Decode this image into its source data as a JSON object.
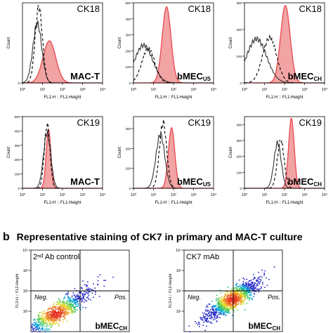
{
  "section_b": {
    "letter": "b",
    "title": "Representative staining of CK7 in primary and MAC-T culture"
  },
  "histogram_axis": {
    "xlabel": "FL1-H :: FL1-Height",
    "ylabel": "Count",
    "x_ticks": [
      "10⁰",
      "10¹",
      "10²",
      "10³",
      "10⁴"
    ]
  },
  "scatter_axis": {
    "ylabel": "FL3-H :: FL2-Height",
    "y_ticks": [
      "10¹",
      "10²",
      "10³",
      "10⁴"
    ],
    "neg_label": "Neg.",
    "pos_label": "Pos."
  },
  "colors": {
    "filled": "#e8474f",
    "filled_fill": "#f2a3a3",
    "isotype_solid": "#333333",
    "isotype_dashed": "#000000"
  },
  "chart_data": [
    {
      "type": "area",
      "id": "ck18-mact",
      "marker": "CK18",
      "sample": "MAC-T",
      "sample_sub": "",
      "x_scale": "log",
      "xlim": [
        1,
        10000
      ],
      "y_ticks": [],
      "ylim": [
        0,
        200
      ],
      "series": [
        {
          "style": "filled",
          "peak_x": 22,
          "peak_y": 105,
          "width": 0.32
        },
        {
          "style": "solid",
          "peak_x": 5.5,
          "peak_y": 148,
          "width": 0.22
        },
        {
          "style": "dashed",
          "peak_x": 6.5,
          "peak_y": 190,
          "width": 0.18
        }
      ]
    },
    {
      "type": "area",
      "id": "ck18-bmecus",
      "marker": "CK18",
      "sample": "bMEC",
      "sample_sub": "US",
      "x_scale": "log",
      "xlim": [
        1,
        10000
      ],
      "y_ticks": [
        "500",
        "400",
        "300",
        "200",
        "100"
      ],
      "ylim": [
        0,
        500
      ],
      "series": [
        {
          "style": "filled",
          "peak_x": 45,
          "peak_y": 475,
          "width": 0.22
        },
        {
          "style": "solid",
          "peak_x": 3.2,
          "peak_y": 235,
          "width": 0.45
        },
        {
          "style": "dashed",
          "peak_x": 5.5,
          "peak_y": 215,
          "width": 0.32
        }
      ]
    },
    {
      "type": "area",
      "id": "ck18-bmecch",
      "marker": "CK18",
      "sample": "bMEC",
      "sample_sub": "CH",
      "x_scale": "log",
      "xlim": [
        1,
        10000
      ],
      "y_ticks": [
        "300",
        "200",
        "100"
      ],
      "ylim": [
        0,
        300
      ],
      "series": [
        {
          "style": "filled",
          "peak_x": 110,
          "peak_y": 290,
          "width": 0.24
        },
        {
          "style": "solid",
          "peak_x": 4,
          "peak_y": 165,
          "width": 0.5
        },
        {
          "style": "dashed",
          "peak_x": 18,
          "peak_y": 170,
          "width": 0.35
        }
      ]
    },
    {
      "type": "area",
      "id": "ck19-mact",
      "marker": "CK19",
      "sample": "MAC-T",
      "sample_sub": "",
      "x_scale": "log",
      "xlim": [
        1,
        10000
      ],
      "y_ticks": [
        "500",
        "400",
        "300",
        "200",
        "100"
      ],
      "ylim": [
        0,
        500
      ],
      "series": [
        {
          "style": "filled",
          "peak_x": 20,
          "peak_y": 410,
          "width": 0.12
        },
        {
          "style": "solid",
          "peak_x": 17,
          "peak_y": 390,
          "width": 0.18
        },
        {
          "style": "dashed",
          "peak_x": 17,
          "peak_y": 445,
          "width": 0.14
        }
      ]
    },
    {
      "type": "area",
      "id": "ck19-bmecus",
      "marker": "CK19",
      "sample": "bMEC",
      "sample_sub": "US",
      "x_scale": "log",
      "xlim": [
        1,
        10000
      ],
      "y_ticks": [
        "300",
        "200",
        "100"
      ],
      "ylim": [
        0,
        360
      ],
      "series": [
        {
          "style": "filled",
          "peak_x": 80,
          "peak_y": 305,
          "width": 0.16
        },
        {
          "style": "solid",
          "peak_x": 22,
          "peak_y": 270,
          "width": 0.22
        },
        {
          "style": "dashed",
          "peak_x": 30,
          "peak_y": 330,
          "width": 0.18
        }
      ]
    },
    {
      "type": "area",
      "id": "ck19-bmecch",
      "marker": "CK19",
      "sample": "bMEC",
      "sample_sub": "CH",
      "x_scale": "log",
      "xlim": [
        1,
        10000
      ],
      "y_ticks": [
        "400",
        "300",
        "200",
        "100"
      ],
      "ylim": [
        0,
        450
      ],
      "series": [
        {
          "style": "filled",
          "peak_x": 220,
          "peak_y": 440,
          "width": 0.14
        },
        {
          "style": "solid",
          "peak_x": 45,
          "peak_y": 285,
          "width": 0.18
        },
        {
          "style": "dashed",
          "peak_x": 65,
          "peak_y": 300,
          "width": 0.17
        }
      ]
    },
    {
      "type": "scatter",
      "id": "scatter-control",
      "label": "2ⁿᵈ Ab control",
      "sample": "bMEC",
      "sample_sub": "CH",
      "x_scale": "log",
      "y_scale": "log",
      "xlim": [
        1,
        10000
      ],
      "ylim": [
        1,
        10000
      ],
      "quadrant": [
        100,
        100
      ],
      "cloud": {
        "center": [
          10,
          8
        ],
        "spread": [
          0.7,
          0.6
        ],
        "correlation": 0.9,
        "n": 900
      }
    },
    {
      "type": "scatter",
      "id": "scatter-ck7",
      "label": "CK7 mAb",
      "sample": "bMEC",
      "sample_sub": "CH",
      "x_scale": "log",
      "y_scale": "log",
      "xlim": [
        1,
        10000
      ],
      "ylim": [
        1,
        10000
      ],
      "quadrant": [
        100,
        100
      ],
      "cloud": {
        "center": [
          90,
          40
        ],
        "spread": [
          0.55,
          0.5
        ],
        "correlation": 0.85,
        "n": 1100
      }
    }
  ]
}
